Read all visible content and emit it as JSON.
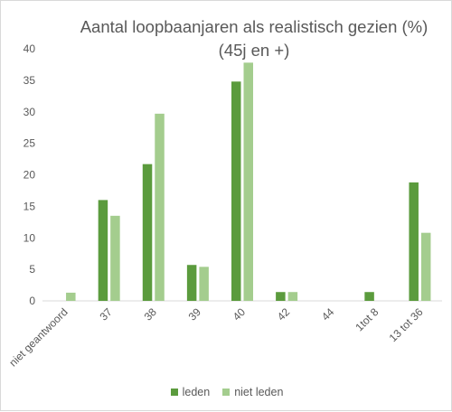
{
  "chart_data": {
    "type": "bar",
    "title_line1": "Aantal loopbaanjaren als realistisch gezien (%)",
    "title_line2": "(45j en +)",
    "categories": [
      "niet geantwoord",
      "37",
      "38",
      "39",
      "40",
      "42",
      "44",
      "1tot 8",
      "13 tot 36"
    ],
    "series": [
      {
        "name": "leden",
        "color": "#5b9b3d",
        "values": [
          0,
          16,
          21.7,
          5.7,
          34.8,
          1.4,
          0,
          1.4,
          18.8
        ]
      },
      {
        "name": "niet leden",
        "color": "#a4cd8e",
        "values": [
          1.3,
          13.5,
          29.7,
          5.4,
          37.8,
          1.4,
          0,
          0,
          10.8
        ]
      }
    ],
    "ylim": [
      0,
      40
    ],
    "yticks": [
      0,
      5,
      10,
      15,
      20,
      25,
      30,
      35,
      40
    ],
    "grid": false,
    "legend_position": "bottom"
  }
}
